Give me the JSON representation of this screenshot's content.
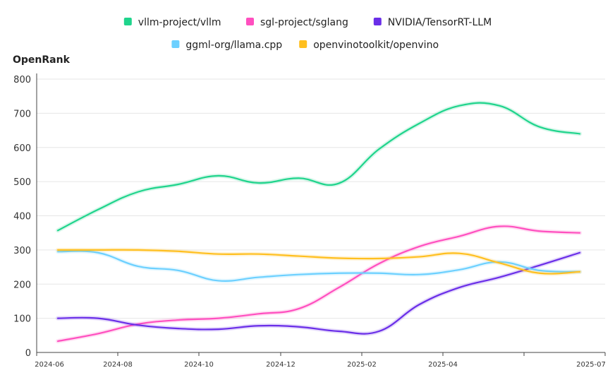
{
  "chart_data": {
    "type": "line",
    "ylabel": "OpenRank",
    "ylim": [
      0,
      800
    ],
    "y_ticks": [
      "0",
      "100",
      "200",
      "300",
      "400",
      "500",
      "600",
      "700",
      "800"
    ],
    "x_ticks": [
      "2024-06",
      "2024-08",
      "2024-10",
      "2024-12",
      "2025-02",
      "2025-04",
      "",
      "2025-07"
    ],
    "x": [
      "2024-06",
      "2024-07",
      "2024-08",
      "2024-09",
      "2024-10",
      "2024-11",
      "2024-12",
      "2025-01",
      "2025-02",
      "2025-03",
      "2025-04",
      "2025-05",
      "2025-06",
      "2025-07"
    ],
    "grid": true,
    "legend_position": "top",
    "series": [
      {
        "name": "vllm-project/vllm",
        "color": "#1fd48c",
        "values": [
          357,
          418,
          470,
          492,
          517,
          496,
          510,
          495,
          595,
          670,
          722,
          722,
          660,
          640
        ]
      },
      {
        "name": "sgl-project/sglang",
        "color": "#ff4fbf",
        "values": [
          33,
          55,
          83,
          95,
          100,
          113,
          128,
          190,
          260,
          310,
          340,
          369,
          355,
          350
        ]
      },
      {
        "name": "NVIDIA/TensorRT-LLM",
        "color": "#6a2ee8",
        "values": [
          100,
          100,
          80,
          70,
          68,
          78,
          75,
          62,
          62,
          140,
          190,
          220,
          255,
          292
        ]
      },
      {
        "name": "ggml-org/llama.cpp",
        "color": "#6cd0ff",
        "values": [
          295,
          292,
          252,
          240,
          210,
          220,
          228,
          232,
          232,
          228,
          242,
          265,
          240,
          236
        ]
      },
      {
        "name": "openvinotoolkit/openvino",
        "color": "#ffbf1f",
        "values": [
          300,
          300,
          300,
          296,
          288,
          288,
          282,
          276,
          275,
          280,
          290,
          262,
          232,
          236
        ]
      }
    ]
  }
}
